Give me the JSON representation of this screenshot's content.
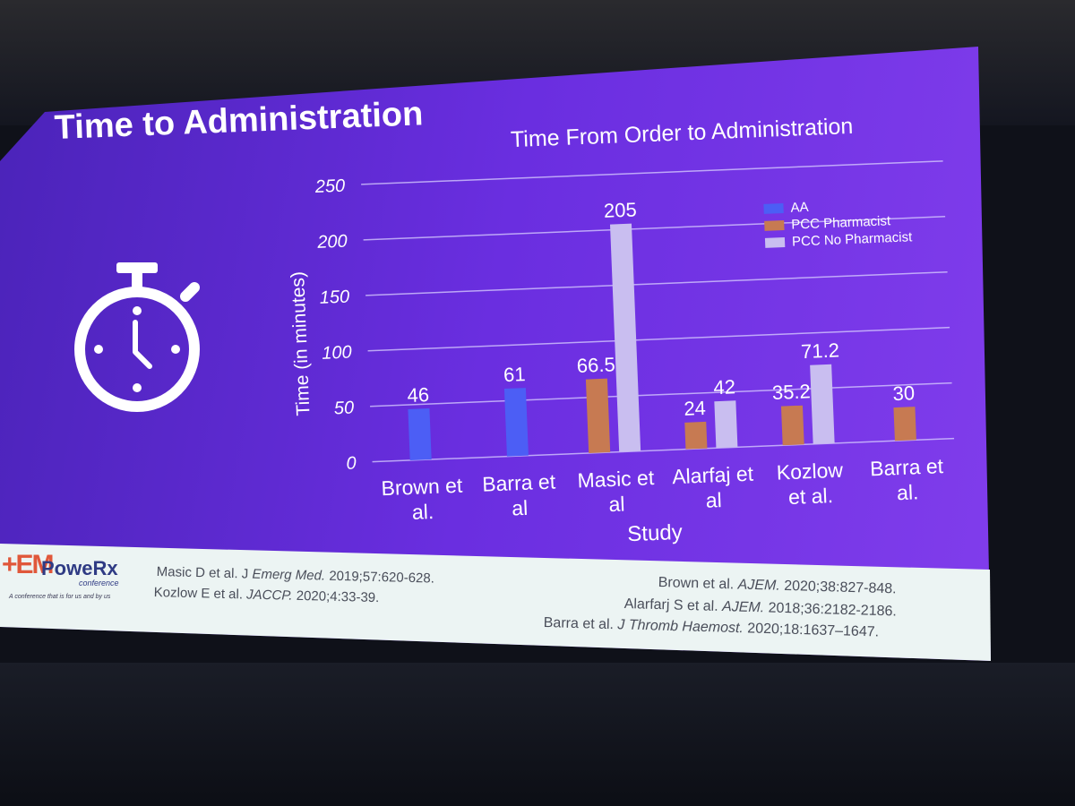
{
  "slide": {
    "title": "Time to Administration"
  },
  "icons": {
    "stopwatch": "stopwatch-icon"
  },
  "colors": {
    "background": "#5a2ad0",
    "aa": "#4c5ef5",
    "pcc_pharmacist": "#c77a52",
    "pcc_no_pharmacist": "#c9bef0"
  },
  "logo": {
    "mark": "+EM",
    "name": "PoweRx",
    "sub": "conference",
    "tagline": "A conference that is for us and by us"
  },
  "references": {
    "left": [
      {
        "plain": "Masic D et al. J ",
        "italic": "Emerg Med.",
        "rest": " 2019;57:620-628."
      },
      {
        "plain": "Kozlow E et al. ",
        "italic": "JACCP.",
        "rest": " 2020;4:33-39."
      }
    ],
    "right": [
      {
        "plain": "Brown et al. ",
        "italic": "AJEM.",
        "rest": " 2020;38:827-848."
      },
      {
        "plain": "Alarfarj S et al. ",
        "italic": "AJEM.",
        "rest": " 2018;36:2182-2186."
      },
      {
        "plain": "Barra et al. ",
        "italic": "J Thromb Haemost.",
        "rest": " 2020;18:1637–1647."
      }
    ]
  },
  "chart_data": {
    "type": "bar",
    "title": "Time From Order to Administration",
    "xlabel": "Study",
    "ylabel": "Time (in minutes)",
    "ylim": [
      0,
      250
    ],
    "yticks": [
      0,
      50,
      100,
      150,
      200,
      250
    ],
    "grid": true,
    "legend_position": "top-right",
    "categories": [
      [
        "Brown et",
        "al."
      ],
      [
        "Barra et",
        "al"
      ],
      [
        "Masic et",
        "al"
      ],
      [
        "Alarfaj et",
        "al"
      ],
      [
        "Kozlow",
        "et al."
      ],
      [
        "Barra et",
        "al."
      ]
    ],
    "series": [
      {
        "name": "AA",
        "color": "#4c5ef5",
        "values": [
          46,
          61,
          null,
          null,
          null,
          null
        ],
        "labels": [
          "46",
          "61",
          null,
          null,
          null,
          null
        ]
      },
      {
        "name": "PCC Pharmacist",
        "color": "#c77a52",
        "values": [
          null,
          null,
          66.5,
          24,
          35.2,
          30
        ],
        "labels": [
          null,
          null,
          "66.5",
          "24",
          "35.2",
          "30"
        ]
      },
      {
        "name": "PCC No Pharmacist",
        "color": "#c9bef0",
        "values": [
          null,
          null,
          205,
          42,
          71.2,
          null
        ],
        "labels": [
          null,
          null,
          "205",
          "42",
          "71.2",
          null
        ]
      }
    ]
  }
}
